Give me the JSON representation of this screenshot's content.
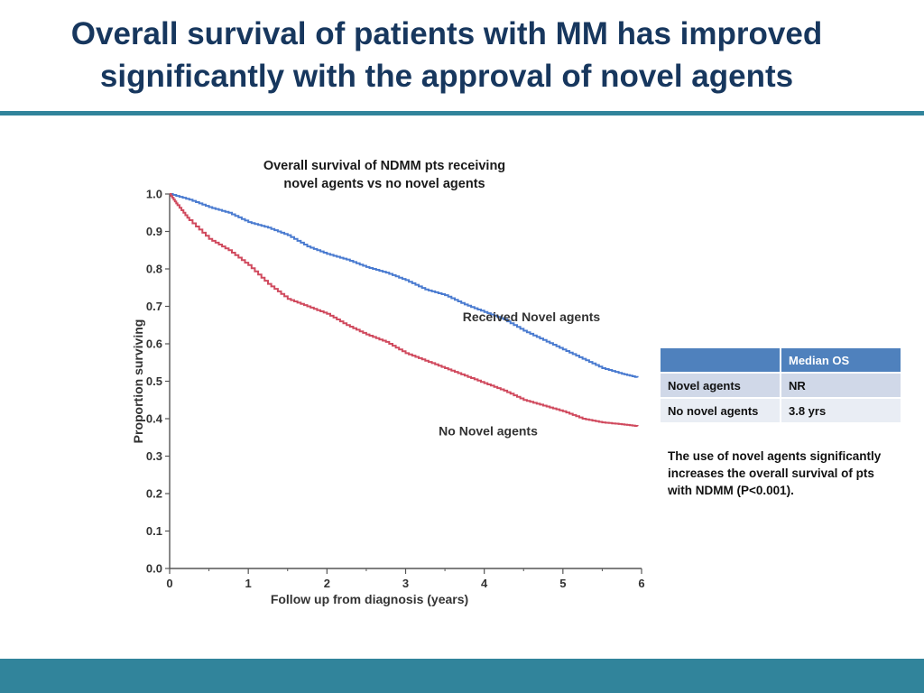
{
  "slide": {
    "title_line1": "Overall survival of patients with MM has improved",
    "title_line2": "significantly with the approval of novel agents"
  },
  "chart_data": {
    "type": "line",
    "title_line1": "Overall survival of NDMM pts receiving",
    "title_line2": "novel agents vs no novel agents",
    "xlabel": "Follow up from diagnosis (years)",
    "ylabel": "Proportion surviving",
    "xlim": [
      0,
      6
    ],
    "ylim": [
      0,
      1.0
    ],
    "x_ticks": [
      "0",
      "1",
      "2",
      "3",
      "4",
      "5",
      "6"
    ],
    "y_ticks": [
      "0.0",
      "0.1",
      "0.2",
      "0.3",
      "0.4",
      "0.5",
      "0.6",
      "0.7",
      "0.8",
      "0.9",
      "1.0"
    ],
    "series": [
      {
        "name": "Received Novel agents",
        "color": "#4a7bd0",
        "x": [
          0,
          0.25,
          0.5,
          0.75,
          1.0,
          1.25,
          1.5,
          1.75,
          2.0,
          2.25,
          2.5,
          2.75,
          3.0,
          3.25,
          3.5,
          3.75,
          4.0,
          4.25,
          4.5,
          4.75,
          5.0,
          5.25,
          5.5,
          5.75,
          5.95
        ],
        "y": [
          1.0,
          0.985,
          0.965,
          0.95,
          0.925,
          0.91,
          0.89,
          0.86,
          0.84,
          0.825,
          0.805,
          0.79,
          0.77,
          0.745,
          0.73,
          0.705,
          0.685,
          0.665,
          0.635,
          0.61,
          0.585,
          0.56,
          0.535,
          0.52,
          0.51
        ]
      },
      {
        "name": "No Novel agents",
        "color": "#d04a5e",
        "x": [
          0,
          0.1,
          0.25,
          0.5,
          0.75,
          1.0,
          1.25,
          1.5,
          1.75,
          2.0,
          2.25,
          2.5,
          2.75,
          3.0,
          3.25,
          3.5,
          3.75,
          4.0,
          4.25,
          4.5,
          4.75,
          5.0,
          5.25,
          5.5,
          5.75,
          5.95
        ],
        "y": [
          1.0,
          0.97,
          0.93,
          0.88,
          0.85,
          0.81,
          0.76,
          0.72,
          0.7,
          0.68,
          0.65,
          0.625,
          0.605,
          0.575,
          0.555,
          0.535,
          0.515,
          0.495,
          0.475,
          0.45,
          0.435,
          0.42,
          0.4,
          0.39,
          0.385,
          0.38
        ]
      }
    ]
  },
  "table": {
    "header": [
      "",
      "Median OS"
    ],
    "rows": [
      [
        "Novel agents",
        "NR"
      ],
      [
        "No novel agents",
        "3.8 yrs"
      ]
    ]
  },
  "note": {
    "text": "The use of novel agents significantly increases the overall survival of pts with NDMM (P<0.001)."
  }
}
